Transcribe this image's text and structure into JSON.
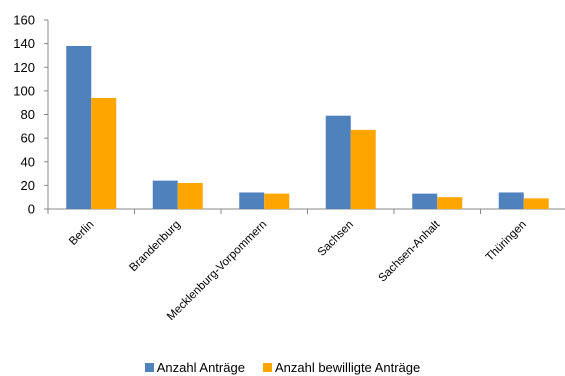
{
  "chart_data": {
    "type": "bar",
    "categories": [
      "Berlin",
      "Brandenburg",
      "Mecklenburg-Vorpommern",
      "Sachsen",
      "Sachsen-Anhalt",
      "Thüringen"
    ],
    "series": [
      {
        "name": "Anzahl Anträge",
        "color": "#4f81bd",
        "values": [
          138,
          24,
          14,
          79,
          13,
          14
        ]
      },
      {
        "name": "Anzahl bewilligte Anträge",
        "color": "#ffa500",
        "values": [
          94,
          22,
          13,
          67,
          10,
          9
        ]
      }
    ],
    "yticks": [
      "0",
      "20",
      "40",
      "60",
      "80",
      "100",
      "120",
      "140",
      "160"
    ],
    "ylim": [
      0,
      160
    ],
    "grid": false,
    "legend_position": "bottom"
  }
}
